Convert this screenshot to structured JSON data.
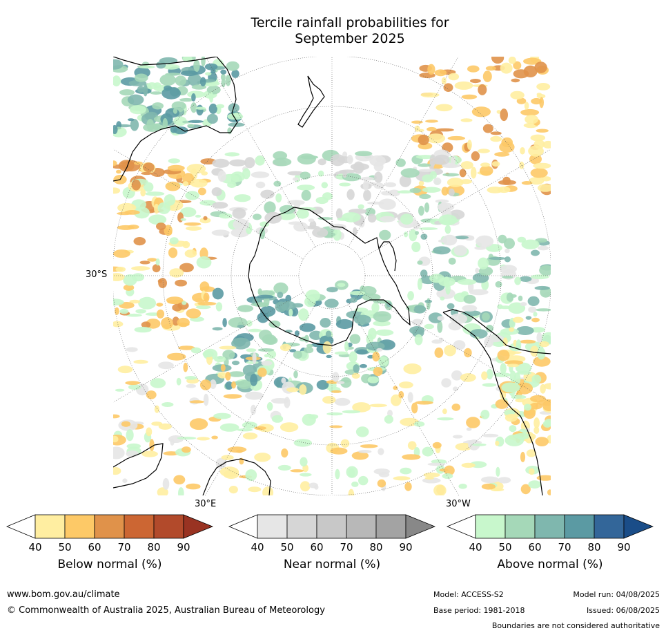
{
  "title": {
    "line1": "Tercile rainfall probabilities for",
    "line2": "September 2025"
  },
  "map": {
    "projection": "south-polar-stereographic",
    "labels": {
      "lat_30s": "30°S",
      "lon_30e": "30°E",
      "lon_30w": "30°W"
    }
  },
  "colorbars": [
    {
      "label": "Below normal (%)",
      "ticks": [
        "40",
        "50",
        "60",
        "70",
        "80",
        "90"
      ],
      "colors": [
        "#ffeea1",
        "#fdc967",
        "#e0924a",
        "#cc6633",
        "#b24a2b",
        "#993322"
      ]
    },
    {
      "label": "Near normal (%)",
      "ticks": [
        "40",
        "50",
        "60",
        "70",
        "80",
        "90"
      ],
      "colors": [
        "#e6e6e6",
        "#d6d6d6",
        "#c8c8c8",
        "#b8b8b8",
        "#a3a3a3",
        "#888888"
      ]
    },
    {
      "label": "Above normal (%)",
      "ticks": [
        "40",
        "50",
        "60",
        "70",
        "80",
        "90"
      ],
      "colors": [
        "#c8f7cc",
        "#a5d8b8",
        "#7fb7ae",
        "#5b9aa3",
        "#336699",
        "#1a4d88"
      ]
    }
  ],
  "footer": {
    "url": "www.bom.gov.au/climate",
    "copyright": "© Commonwealth of Australia 2025, Australian Bureau of Meteorology",
    "model": "Model: ACCESS-S2",
    "base_period": "Base period: 1981-2018",
    "model_run": "Model run: 04/08/2025",
    "issued": "Issued: 06/08/2025",
    "disclaimer": "Boundaries are not considered authoritative"
  }
}
